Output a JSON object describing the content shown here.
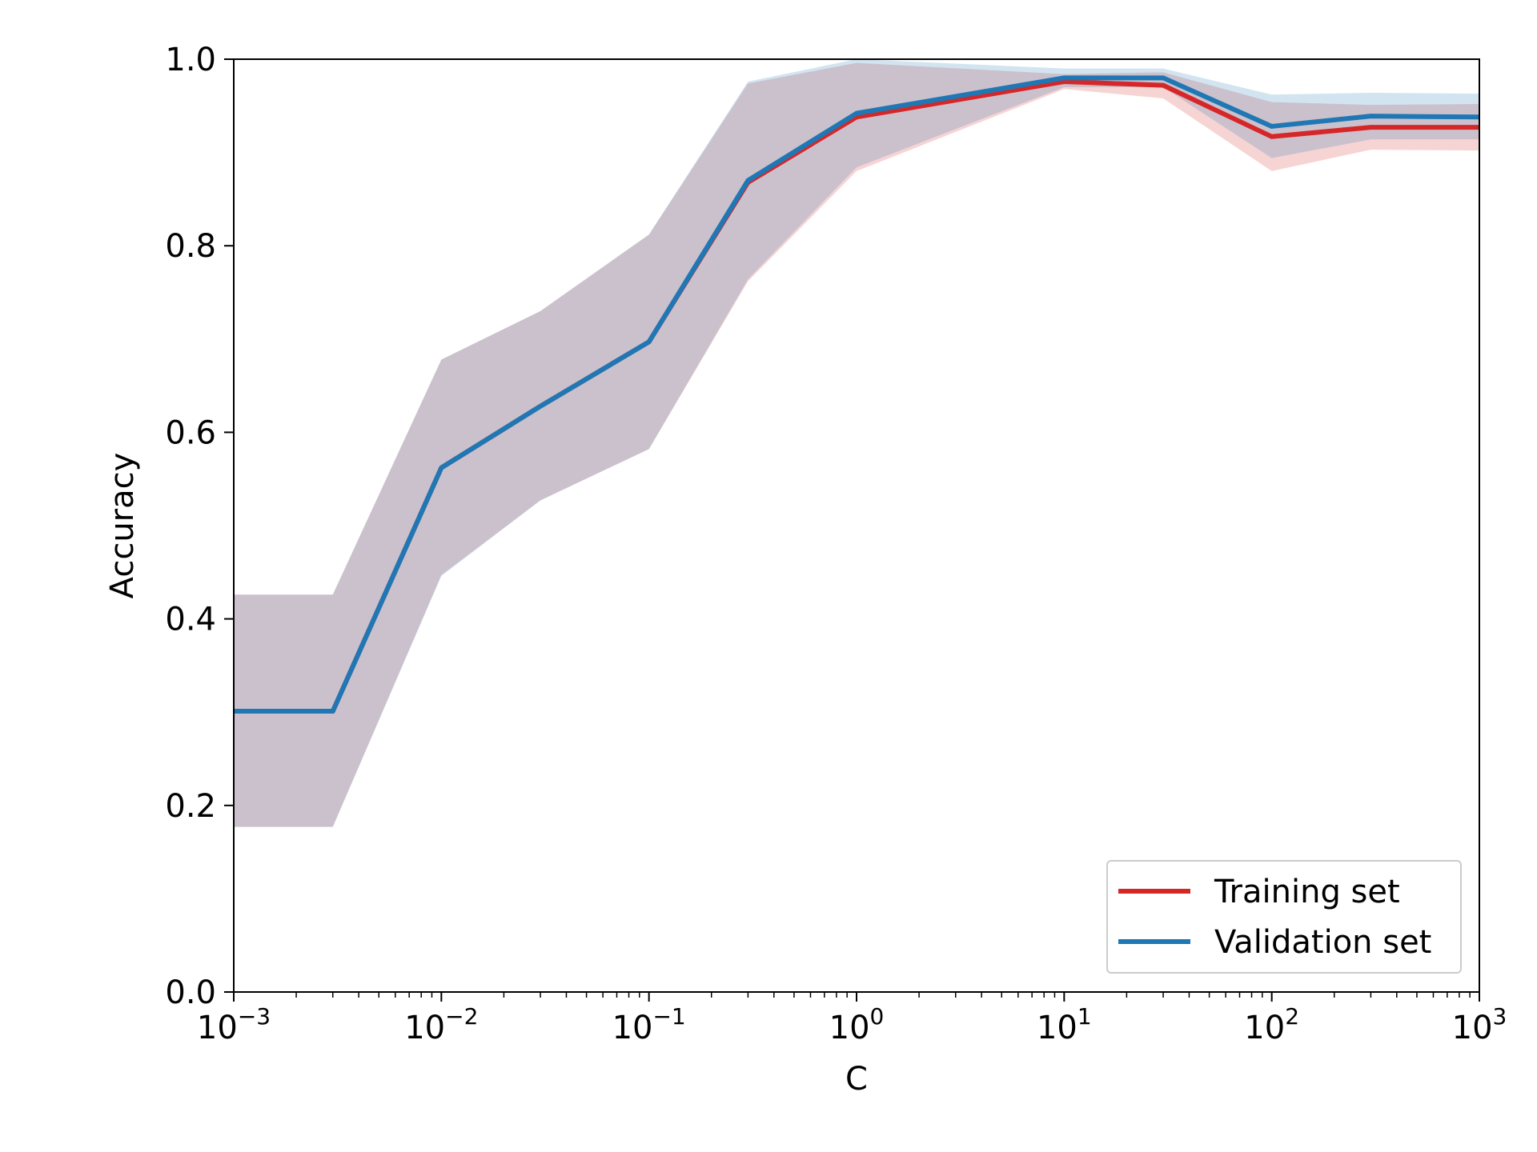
{
  "chart_data": {
    "type": "line",
    "title": "",
    "xlabel": "C",
    "ylabel": "Accuracy",
    "x_scale": "log",
    "xlim": [
      0.001,
      1000
    ],
    "ylim": [
      0.0,
      1.0
    ],
    "x": [
      0.001,
      0.003,
      0.01,
      0.03,
      0.1,
      0.3,
      1,
      10,
      30,
      100,
      300,
      1000
    ],
    "series": [
      {
        "name": "Training set",
        "color": "#d62728",
        "values": [
          0.301,
          0.301,
          0.562,
          0.628,
          0.697,
          0.868,
          0.938,
          0.976,
          0.972,
          0.917,
          0.927,
          0.927
        ],
        "lower": [
          0.177,
          0.177,
          0.447,
          0.527,
          0.582,
          0.762,
          0.88,
          0.968,
          0.958,
          0.88,
          0.903,
          0.902
        ],
        "upper": [
          0.426,
          0.426,
          0.678,
          0.73,
          0.812,
          0.974,
          0.996,
          0.984,
          0.986,
          0.954,
          0.951,
          0.952
        ]
      },
      {
        "name": "Validation set",
        "color": "#1f77b4",
        "values": [
          0.301,
          0.301,
          0.562,
          0.628,
          0.697,
          0.87,
          0.942,
          0.98,
          0.98,
          0.928,
          0.939,
          0.938
        ],
        "lower": [
          0.177,
          0.177,
          0.446,
          0.527,
          0.582,
          0.764,
          0.884,
          0.97,
          0.97,
          0.894,
          0.914,
          0.914
        ],
        "upper": [
          0.426,
          0.426,
          0.678,
          0.73,
          0.812,
          0.976,
          1.0,
          0.99,
          0.99,
          0.962,
          0.964,
          0.963
        ]
      }
    ],
    "x_ticks": [
      {
        "base": "10",
        "exp": "−3"
      },
      {
        "base": "10",
        "exp": "−2"
      },
      {
        "base": "10",
        "exp": "−1"
      },
      {
        "base": "10",
        "exp": "0"
      },
      {
        "base": "10",
        "exp": "1"
      },
      {
        "base": "10",
        "exp": "2"
      },
      {
        "base": "10",
        "exp": "3"
      }
    ],
    "x_tick_values": [
      0.001,
      0.01,
      0.1,
      1,
      10,
      100,
      1000
    ],
    "y_ticks": [
      "0.0",
      "0.2",
      "0.4",
      "0.6",
      "0.8",
      "1.0"
    ],
    "y_tick_values": [
      0.0,
      0.2,
      0.4,
      0.6,
      0.8,
      1.0
    ],
    "legend_position": "bottom-right",
    "grid": false
  }
}
